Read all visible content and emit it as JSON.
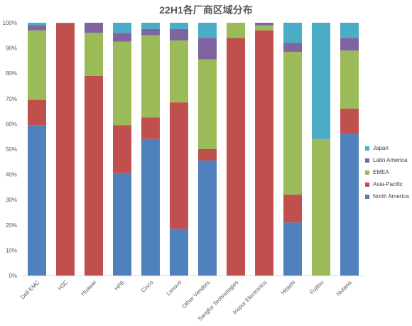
{
  "chart_data": {
    "type": "bar",
    "stacked": true,
    "normalized": true,
    "title": "22H1各厂商区域分布",
    "xlabel": "",
    "ylabel": "",
    "ylim": [
      0,
      100
    ],
    "yticks": [
      "0%",
      "10%",
      "20%",
      "30%",
      "40%",
      "50%",
      "60%",
      "70%",
      "80%",
      "90%",
      "100%"
    ],
    "grid": false,
    "legend_position": "right",
    "categories": [
      "Dell EMC",
      "H3C",
      "Huawei",
      "HPE",
      "Cisco",
      "Lenovo",
      "Other Vendors",
      "Sangfor Technologies",
      "Inspur Electronics",
      "Hitachi",
      "Fujitsu",
      "Nutanix"
    ],
    "series": [
      {
        "name": "North America",
        "color": "#4F81BD",
        "values": [
          59.5,
          0,
          0,
          40.5,
          54,
          18.5,
          45.5,
          0,
          0,
          21,
          0,
          56
        ]
      },
      {
        "name": "Asia-Pacific",
        "color": "#C0504D",
        "values": [
          10,
          99.5,
          79,
          19,
          8.5,
          50,
          4.5,
          94,
          97,
          11,
          0,
          10
        ]
      },
      {
        "name": "EMEA",
        "color": "#9BBB59",
        "values": [
          27.5,
          0,
          17,
          33,
          32.5,
          24.5,
          35.5,
          6,
          2,
          56.5,
          54,
          23
        ]
      },
      {
        "name": "Latin America",
        "color": "#8064A2",
        "values": [
          2,
          0.5,
          4,
          3.5,
          2.5,
          4.5,
          8.5,
          0,
          1,
          3.5,
          0,
          5
        ]
      },
      {
        "name": "Japan",
        "color": "#4BACC6",
        "values": [
          1,
          0,
          0,
          4,
          2.5,
          2.5,
          6,
          0,
          0,
          8,
          46,
          6
        ]
      }
    ]
  }
}
